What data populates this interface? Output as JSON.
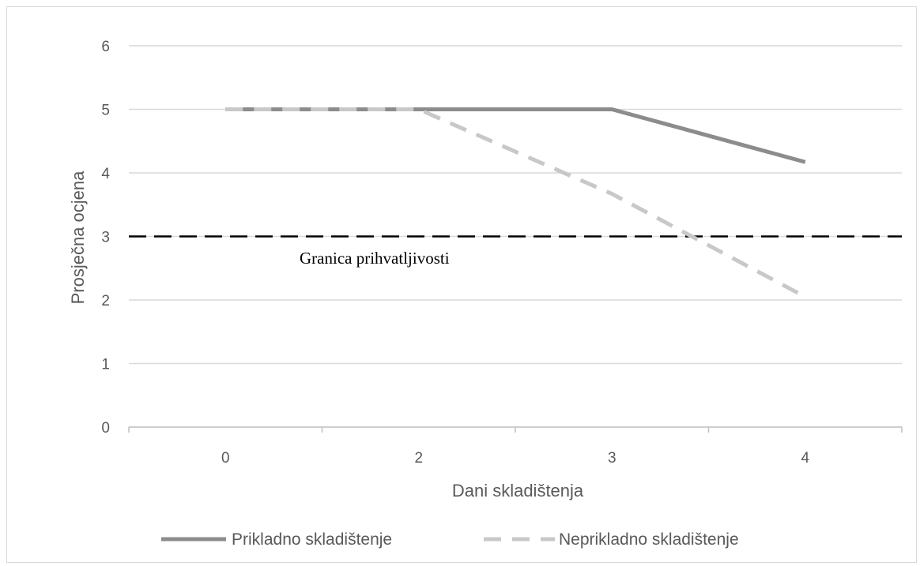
{
  "chart_data": {
    "type": "line",
    "categories": [
      "0",
      "2",
      "3",
      "4"
    ],
    "series": [
      {
        "name": "Prikladno skladištenje",
        "values": [
          5,
          5,
          5,
          4.17
        ],
        "color": "#8c8c8c",
        "style": "solid"
      },
      {
        "name": "Neprikladno skladištenje",
        "values": [
          5,
          5,
          3.67,
          2.05
        ],
        "color": "#c8c8c8",
        "style": "dashed"
      }
    ],
    "reference_line": {
      "value": 3,
      "label": "Granica prihvatljivosti",
      "color": "#000000",
      "style": "dashed"
    },
    "xlabel": "Dani skladištenja",
    "ylabel": "Prosječna ocjena",
    "ylim": [
      0,
      6
    ],
    "yticks": [
      "0",
      "1",
      "2",
      "3",
      "4",
      "5",
      "6"
    ],
    "grid": true,
    "legend_position": "bottom"
  }
}
